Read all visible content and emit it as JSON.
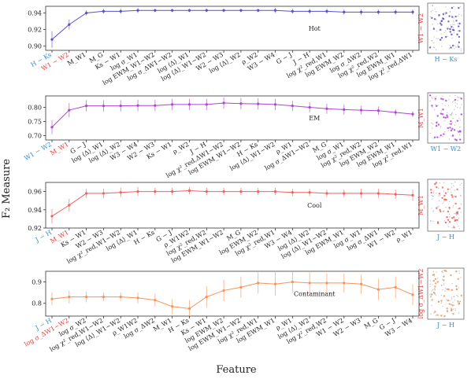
{
  "figure": {
    "ylabel": "F₂ Measure",
    "xlabel": "Feature"
  },
  "chart_data": [
    {
      "type": "line",
      "label": "Hot",
      "color": "#5a4fcf",
      "category_colors": [
        "#3a8ad0",
        "#e04040"
      ],
      "ylim": [
        0.895,
        0.948
      ],
      "yticks": [
        {
          "value": 0.9,
          "label": "0.90"
        },
        0.92,
        0.94
      ],
      "categories": [
        "H − Ks",
        "W1 − W2",
        "M_W1",
        "M_G",
        "Ks − W1",
        "log σ_W1",
        "log EWM_W1−W2",
        "log σ_ΔW1−W2",
        "log ⟨Δ⟩_W1",
        "log ⟨Δ⟩_W1−W2",
        "W2 − W3",
        "log ⟨Δ⟩_W2",
        "ρ_W2",
        "W3 − W4",
        "G − J",
        "J − H",
        "log χ²_red,W1",
        "log EWM_W2",
        "log σ_ΔW2",
        "log χ²_red,W2",
        "log EWM_W1",
        "log χ²_red,ΔW1"
      ],
      "values": [
        0.908,
        0.926,
        0.94,
        0.942,
        0.942,
        0.943,
        0.943,
        0.943,
        0.943,
        0.943,
        0.943,
        0.943,
        0.943,
        0.943,
        0.942,
        0.942,
        0.942,
        0.941,
        0.941,
        0.941,
        0.941,
        0.941
      ],
      "errors": [
        0.01,
        0.006,
        0.003,
        0.003,
        0.003,
        0.003,
        0.002,
        0.002,
        0.002,
        0.002,
        0.002,
        0.002,
        0.002,
        0.003,
        0.003,
        0.003,
        0.003,
        0.003,
        0.003,
        0.003,
        0.003,
        0.003
      ],
      "inset": {
        "ylabel": "W1 − W2",
        "xlabel": "H − Ks",
        "ylabel_color": "#e04040",
        "xlabel_color": "#3a8ad0"
      }
    },
    {
      "type": "line",
      "label": "EM",
      "color": "#b044d0",
      "category_colors": [
        "#3a8ad0",
        "#e04040"
      ],
      "ylim": [
        0.685,
        0.84
      ],
      "yticks": [
        {
          "value": 0.7,
          "label": "0.70"
        },
        0.75,
        {
          "value": 0.8,
          "label": "0.80"
        }
      ],
      "categories": [
        "W1 − W2",
        "M_W1",
        "G − J",
        "log ⟨Δ⟩_W1",
        "log ⟨Δ⟩_W2",
        "W3 − W4",
        "W2 − W3",
        "Ks − W1",
        "ρ_W2",
        "J − H",
        "log χ²_red,ΔW1−W2",
        "log EWM_W1−W2",
        "H − Ks",
        "log ⟨Δ⟩_W1−W2",
        "ρ_W1",
        "log σ_ΔW1−W2",
        "M_G",
        "log σ_W1",
        "log χ²_red,W2",
        "log EWM_W2",
        "log EWM_W1",
        "log χ²_red,W1"
      ],
      "values": [
        0.73,
        0.79,
        0.805,
        0.805,
        0.805,
        0.806,
        0.806,
        0.81,
        0.81,
        0.81,
        0.815,
        0.813,
        0.812,
        0.81,
        0.805,
        0.8,
        0.795,
        0.792,
        0.79,
        0.788,
        0.782,
        0.776
      ],
      "errors": [
        0.025,
        0.025,
        0.02,
        0.02,
        0.02,
        0.02,
        0.02,
        0.02,
        0.02,
        0.02,
        0.02,
        0.02,
        0.02,
        0.02,
        0.018,
        0.018,
        0.018,
        0.018,
        0.015,
        0.015,
        0.012,
        0.01
      ],
      "inset": {
        "ylabel": "M_W1",
        "xlabel": "W1 − W2",
        "ylabel_color": "#e04040",
        "xlabel_color": "#3a8ad0"
      }
    },
    {
      "type": "line",
      "label": "Cool",
      "color": "#f06060",
      "category_colors": [
        "#3a8ad0",
        "#e04040"
      ],
      "ylim": [
        0.92,
        0.97
      ],
      "yticks": [
        0.92,
        0.94,
        0.96
      ],
      "categories": [
        "J − H",
        "M_W1",
        "Ks − W1",
        "W2 − W3",
        "log χ²_red,W1−W2",
        "log ⟨Δ⟩_W1",
        "H − Ks",
        "G − J",
        "ρ_W1W2",
        "log χ²_red,W2",
        "log EWM_W1−W2",
        "M_G",
        "log EWM_W2",
        "log χ²_red,W1",
        "W3 − W4",
        "log ⟨Δ⟩_W2",
        "log ⟨Δ⟩_W1−W2",
        "log EWM_W1",
        "log σ_W1",
        "log σ_ΔW1",
        "W1 − W2",
        "ρ_W1"
      ],
      "values": [
        0.933,
        0.945,
        0.958,
        0.958,
        0.959,
        0.96,
        0.96,
        0.96,
        0.961,
        0.96,
        0.96,
        0.96,
        0.96,
        0.96,
        0.959,
        0.959,
        0.958,
        0.958,
        0.958,
        0.958,
        0.957,
        0.956
      ],
      "errors": [
        0.008,
        0.007,
        0.005,
        0.005,
        0.005,
        0.005,
        0.004,
        0.004,
        0.004,
        0.004,
        0.004,
        0.004,
        0.004,
        0.004,
        0.004,
        0.004,
        0.004,
        0.004,
        0.005,
        0.005,
        0.005,
        0.006
      ],
      "inset": {
        "ylabel": "M_W1",
        "xlabel": "J − H",
        "ylabel_color": "#e04040",
        "xlabel_color": "#3a8ad0"
      }
    },
    {
      "type": "line",
      "label": "Contaminant",
      "color": "#f5925a",
      "category_colors": [
        "#3a8ad0",
        "#e04040"
      ],
      "ylim": [
        0.74,
        0.95
      ],
      "yticks": [
        0.8,
        0.9
      ],
      "categories": [
        "J − H",
        "log σ_ΔW1−W2",
        "log σ_W2",
        "log χ²_red,W1−W2",
        "log ⟨Δ⟩_W1−W2",
        "ρ_W1W2",
        "log σ_ΔW2",
        "M_W1",
        "H − Ks",
        "Ks − W1",
        "log EWM_W2",
        "log EWM_W1−W2",
        "log χ²_red,W1",
        "log EWM_W1",
        "ρ_W1",
        "log ⟨Δ⟩_W2",
        "log χ²_red,W2",
        "W1 − W2",
        "W2 − W3",
        "M_G",
        "G − J",
        "W3 − W4"
      ],
      "values": [
        0.82,
        0.83,
        0.83,
        0.83,
        0.83,
        0.825,
        0.815,
        0.785,
        0.775,
        0.83,
        0.86,
        0.875,
        0.895,
        0.89,
        0.9,
        0.895,
        0.895,
        0.895,
        0.89,
        0.865,
        0.875,
        0.84
      ],
      "errors": [
        0.03,
        0.03,
        0.025,
        0.02,
        0.02,
        0.025,
        0.03,
        0.035,
        0.04,
        0.05,
        0.05,
        0.05,
        0.05,
        0.055,
        0.05,
        0.05,
        0.045,
        0.045,
        0.045,
        0.05,
        0.05,
        0.05
      ],
      "inset": {
        "ylabel": "log σ_ΔW1−W2",
        "xlabel": "J − H",
        "ylabel_color": "#e04040",
        "xlabel_color": "#3a8ad0"
      }
    }
  ]
}
